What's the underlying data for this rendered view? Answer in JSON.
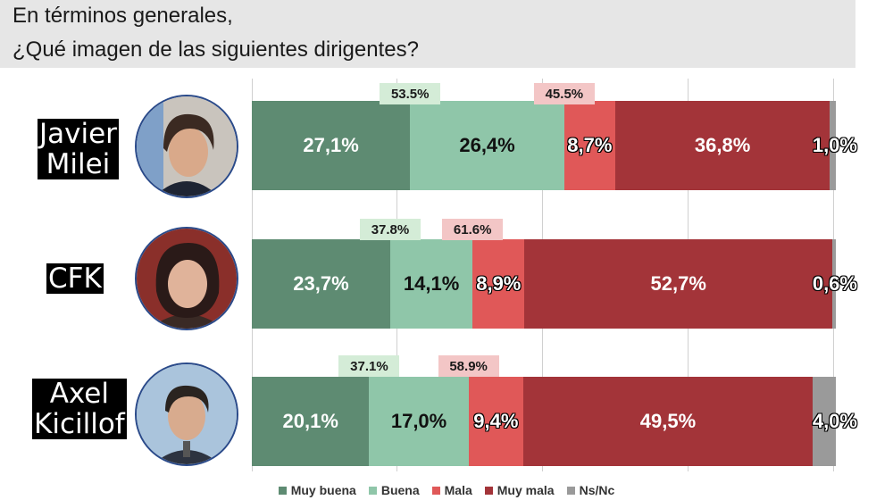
{
  "title": {
    "line1": "En términos generales,",
    "line2": "¿Qué imagen de las siguientes dirigentes?"
  },
  "colors": {
    "muy_buena": "#5e8b72",
    "buena": "#8fc6a9",
    "mala": "#e05858",
    "muy_mala": "#a33439",
    "ns_nc": "#9a9a9a"
  },
  "chart_data": {
    "type": "bar",
    "orientation": "horizontal",
    "stacked": true,
    "categories": [
      "Javier Milei",
      "CFK",
      "Axel Kicillof"
    ],
    "category_labels": [
      [
        "Javier",
        "Milei"
      ],
      [
        "CFK"
      ],
      [
        "Axel",
        "Kicillof"
      ]
    ],
    "series": [
      {
        "name": "Muy buena",
        "values": [
          27.1,
          23.7,
          20.1
        ],
        "labels": [
          "27,1%",
          "23,7%",
          "20,1%"
        ]
      },
      {
        "name": "Buena",
        "values": [
          26.4,
          14.1,
          17.0
        ],
        "labels": [
          "26,4%",
          "14,1%",
          "17,0%"
        ]
      },
      {
        "name": "Mala",
        "values": [
          8.7,
          8.9,
          9.4
        ],
        "labels": [
          "8,7%",
          "8,9%",
          "9,4%"
        ]
      },
      {
        "name": "Muy mala",
        "values": [
          36.8,
          52.7,
          49.5
        ],
        "labels": [
          "36,8%",
          "52,7%",
          "49,5%"
        ]
      },
      {
        "name": "Ns/Nc",
        "values": [
          1.0,
          0.6,
          4.0
        ],
        "labels": [
          "1,0%",
          "0,6%",
          "4,0%"
        ]
      }
    ],
    "positive_totals": [
      "53.5%",
      "37.8%",
      "37.1%"
    ],
    "negative_totals": [
      "45.5%",
      "61.6%",
      "58.9%"
    ],
    "xlim": [
      0,
      100
    ],
    "grid": true,
    "legend_position": "bottom"
  }
}
